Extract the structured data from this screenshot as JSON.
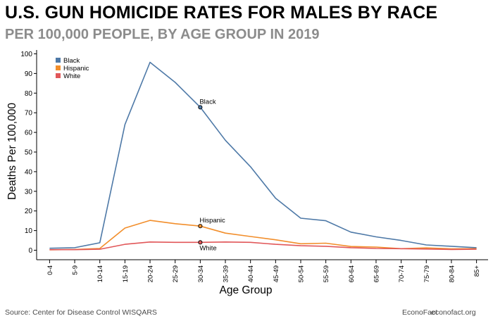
{
  "title": "U.S. GUN HOMICIDE RATES FOR MALES BY RACE",
  "subtitle": "PER 100,000 PEOPLE, BY AGE GROUP IN 2019",
  "footer": {
    "source": "Source: Center for Disease Control WISQARS",
    "brand": "EconoFact",
    "site": "econofact.org"
  },
  "chart_data": {
    "type": "line",
    "xlabel": "Age Group",
    "ylabel": "Deaths Per 100,000",
    "ylim": [
      0,
      100
    ],
    "yticks": [
      0,
      10,
      20,
      30,
      40,
      50,
      60,
      70,
      80,
      90,
      100
    ],
    "grid": false,
    "legend_position": "top-left",
    "categories": [
      "0-4",
      "5-9",
      "10-14",
      "15-19",
      "20-24",
      "25-29",
      "30-34",
      "35-39",
      "40-44",
      "45-49",
      "50-54",
      "55-59",
      "60-64",
      "65-69",
      "70-74",
      "75-79",
      "80-84",
      "85+"
    ],
    "series": [
      {
        "name": "Black",
        "color": "#4e79a7",
        "values": [
          1.0,
          1.3,
          3.8,
          64.0,
          95.7,
          85.5,
          72.8,
          56.0,
          42.5,
          26.5,
          16.3,
          15.0,
          9.2,
          6.8,
          5.0,
          2.7,
          2.0,
          1.3
        ]
      },
      {
        "name": "Hispanic",
        "color": "#f28e2b",
        "values": [
          0.2,
          0.4,
          0.9,
          11.3,
          15.2,
          13.5,
          12.3,
          8.7,
          7.0,
          5.3,
          3.3,
          3.6,
          1.9,
          1.6,
          0.8,
          1.2,
          0.7,
          0.8
        ]
      },
      {
        "name": "White",
        "color": "#e15759",
        "values": [
          0.3,
          0.3,
          0.5,
          3.0,
          4.2,
          4.0,
          4.0,
          4.2,
          4.0,
          3.0,
          2.3,
          2.0,
          1.3,
          0.9,
          0.8,
          0.6,
          0.4,
          0.5
        ]
      }
    ],
    "annotations": [
      {
        "series": "Black",
        "category": "30-34",
        "text": "Black",
        "place": "above"
      },
      {
        "series": "Hispanic",
        "category": "30-34",
        "text": "Hispanic",
        "place": "above"
      },
      {
        "series": "White",
        "category": "30-34",
        "text": "White",
        "place": "below"
      }
    ]
  }
}
